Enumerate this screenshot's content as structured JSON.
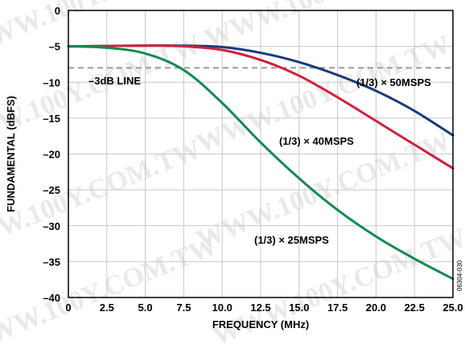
{
  "chart_data": {
    "type": "line",
    "xlabel": "FREQUENCY (MHz)",
    "ylabel": "FUNDAMENTAL (dBFS)",
    "xlim": [
      0,
      25
    ],
    "ylim": [
      -40,
      0
    ],
    "xticks": [
      0,
      2.5,
      5,
      7.5,
      10,
      12.5,
      15,
      17.5,
      20,
      22.5,
      25
    ],
    "xtick_labels": [
      "0",
      "2.5",
      "5.0",
      "7.5",
      "10.0",
      "12.5",
      "15.0",
      "17.5",
      "20.0",
      "22.5",
      "25.0"
    ],
    "yticks": [
      0,
      -5,
      -10,
      -15,
      -20,
      -25,
      -30,
      -35,
      -40
    ],
    "ytick_labels": [
      "0",
      "–5",
      "–10",
      "–15",
      "–20",
      "–25",
      "–30",
      "–35",
      "–40"
    ],
    "grid": true,
    "reference_line": {
      "label": "–3dB LINE",
      "y": -8
    },
    "series": [
      {
        "name": "(1/3) × 50MSPS",
        "color": "#1b3a7a",
        "x": [
          0,
          2.5,
          5,
          7.5,
          10,
          12.5,
          15,
          17.5,
          20,
          22.5,
          25
        ],
        "y": [
          -5.0,
          -4.95,
          -4.9,
          -4.9,
          -5.1,
          -5.9,
          -7.2,
          -9.0,
          -11.2,
          -14.0,
          -17.4
        ]
      },
      {
        "name": "(1/3) × 40MSPS",
        "color": "#d11f3f",
        "x": [
          0,
          2.5,
          5,
          7.5,
          10,
          12.5,
          15,
          17.5,
          20,
          22.5,
          25
        ],
        "y": [
          -5.0,
          -4.95,
          -4.9,
          -5.0,
          -5.5,
          -6.9,
          -9.1,
          -12.1,
          -15.4,
          -18.7,
          -22.0
        ]
      },
      {
        "name": "(1/3) × 25MSPS",
        "color": "#128a4f",
        "x": [
          0,
          2.5,
          5,
          7.5,
          10,
          12.5,
          15,
          17.5,
          20,
          22.5,
          25
        ],
        "y": [
          -5.0,
          -5.2,
          -6.0,
          -8.3,
          -12.9,
          -18.4,
          -23.4,
          -27.8,
          -31.5,
          -34.6,
          -37.4
        ]
      }
    ],
    "annotations": [
      "–3dB LINE",
      "(1/3) × 50MSPS",
      "(1/3) × 40MSPS",
      "(1/3) × 25MSPS"
    ],
    "figure_id": "06304-030",
    "watermark_text": "WWW.100Y.COM.TW"
  }
}
